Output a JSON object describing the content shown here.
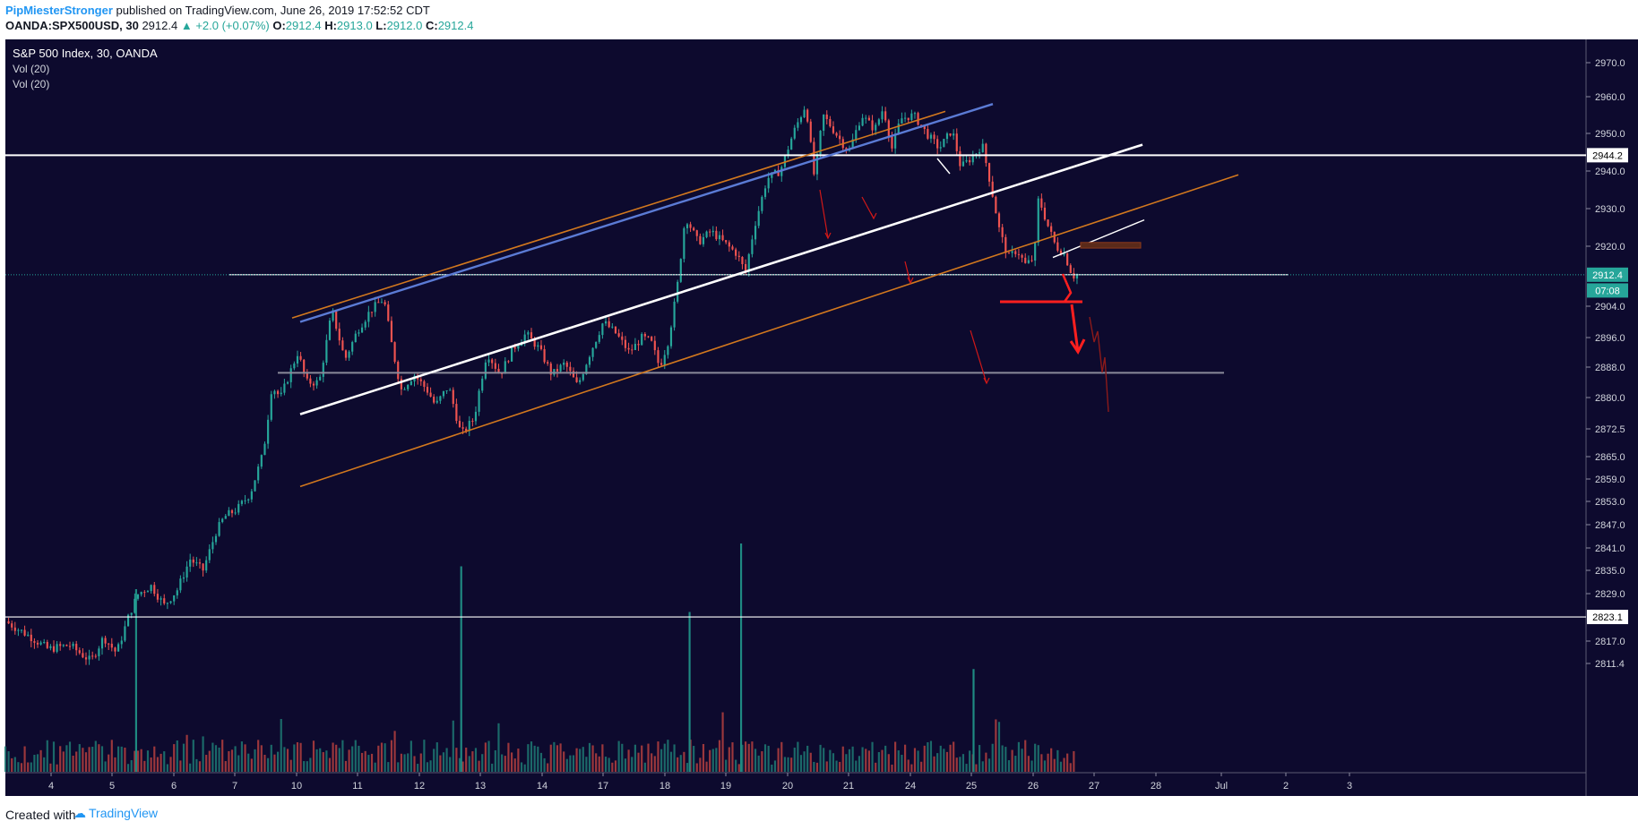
{
  "header": {
    "author": "PipMiesterStronger",
    "published_text": "published on TradingView.com, June 26, 2019 17:52:52 CDT",
    "symbol": "OANDA:SPX500USD, 30",
    "last": "2912.4",
    "change": "▲ +2.0 (+0.07%)",
    "o_label": "O:",
    "o_value": "2912.4",
    "h_label": "H:",
    "h_value": "2913.0",
    "l_label": "L:",
    "l_value": "2912.0",
    "c_label": "C:",
    "c_value": "2912.4"
  },
  "legend": {
    "title": "S&P 500 Index, 30, OANDA",
    "vol1": "Vol (20)",
    "vol2": "Vol (20)"
  },
  "footer": {
    "created_with": "Created with",
    "brand": "TradingView"
  },
  "colors": {
    "background": "#0d0a2e",
    "up": "#26a69a",
    "down": "#ef5350",
    "orange": "#d2781e",
    "blue": "#5b7bd5",
    "white": "#ffffff",
    "grey": "#8a8a9a",
    "red": "#ff1f1f"
  },
  "chart_data": {
    "type": "candlestick",
    "timeframe": "30",
    "y_ticks": [
      "2970.0",
      "2960.0",
      "2950.0",
      "2940.0",
      "2930.0",
      "2920.0",
      "2904.0",
      "2896.0",
      "2888.0",
      "2880.0",
      "2872.5",
      "2865.0",
      "2859.0",
      "2853.0",
      "2847.0",
      "2841.0",
      "2835.0",
      "2829.0",
      "2817.0",
      "2811.4"
    ],
    "y_tick_values": [
      2970,
      2960,
      2950,
      2940,
      2930,
      2920,
      2904,
      2896,
      2888,
      2880,
      2872.5,
      2865,
      2859,
      2853,
      2847,
      2841,
      2835,
      2829,
      2817,
      2811.4
    ],
    "x_ticks": [
      "4",
      "5",
      "6",
      "7",
      "10",
      "11",
      "12",
      "13",
      "14",
      "17",
      "18",
      "19",
      "20",
      "21",
      "24",
      "25",
      "26",
      "27",
      "28",
      "Jul",
      "2",
      "3"
    ],
    "price_labels": [
      {
        "text": "2944.2",
        "value": 2944.2,
        "style": "white"
      },
      {
        "text": "2912.4",
        "value": 2912.4,
        "style": "teal"
      },
      {
        "text": "07:08",
        "value": 2908.2,
        "style": "teal"
      },
      {
        "text": "2823.1",
        "value": 2823.1,
        "style": "white"
      }
    ],
    "horizontal_lines": [
      {
        "value": 2944.2,
        "style": "white",
        "from_day": 3.0,
        "to_day": 3.3
      },
      {
        "value": 2912.4,
        "style": "white-thin",
        "from_day": 7.0,
        "to_day": 2.0
      },
      {
        "value": 2886.5,
        "style": "grey",
        "from_day": 9.7,
        "to_day": 1.0
      },
      {
        "value": 2823.1,
        "style": "white-thin",
        "from_day": 3.0,
        "to_day": 3.3
      }
    ],
    "trend_lines": [
      {
        "style": "orange",
        "from": {
          "x": "10",
          "y": 2901
        },
        "to": {
          "x": "24",
          "y": 2956
        }
      },
      {
        "style": "blue",
        "from": {
          "x": "10",
          "y": 2900
        },
        "to": {
          "x": "25",
          "y": 2958
        }
      },
      {
        "style": "white",
        "from": {
          "x": "10",
          "y": 2876
        },
        "to": {
          "x": "27",
          "y": 2947
        }
      },
      {
        "style": "orange",
        "from": {
          "x": "10",
          "y": 2857
        },
        "to": {
          "x": "28",
          "y": 2939
        }
      },
      {
        "style": "white-thin",
        "from": {
          "x": "26",
          "y": 2917
        },
        "to": {
          "x": "27",
          "y": 2927
        }
      }
    ],
    "rectangle": {
      "y_top": 2921,
      "y_bottom": 2919.5,
      "color": "#5a2a1a"
    },
    "price_path": [
      [
        3.0,
        2822
      ],
      [
        3.6,
        2818
      ],
      [
        4.0,
        2815
      ],
      [
        4.5,
        2816
      ],
      [
        5.0,
        2812
      ],
      [
        5.3,
        2818
      ],
      [
        5.6,
        2814
      ],
      [
        5.9,
        2824
      ],
      [
        6.1,
        2829
      ],
      [
        6.4,
        2831
      ],
      [
        6.7,
        2826
      ],
      [
        7.0,
        2830
      ],
      [
        7.3,
        2838
      ],
      [
        7.6,
        2835
      ],
      [
        7.9,
        2845
      ],
      [
        8.1,
        2849
      ],
      [
        8.4,
        2851
      ],
      [
        8.7,
        2855
      ],
      [
        9.0,
        2866
      ],
      [
        9.2,
        2883
      ],
      [
        9.4,
        2880
      ],
      [
        9.6,
        2886
      ],
      [
        9.8,
        2892
      ],
      [
        10.0,
        2884
      ],
      [
        10.3,
        2884
      ],
      [
        10.6,
        2903
      ],
      [
        10.9,
        2890
      ],
      [
        11.2,
        2898
      ],
      [
        11.5,
        2903
      ],
      [
        11.8,
        2906
      ],
      [
        12.0,
        2893
      ],
      [
        12.2,
        2882
      ],
      [
        12.5,
        2886
      ],
      [
        12.8,
        2882
      ],
      [
        13.0,
        2878
      ],
      [
        13.3,
        2883
      ],
      [
        13.6,
        2871
      ],
      [
        13.9,
        2875
      ],
      [
        14.2,
        2892
      ],
      [
        14.5,
        2886
      ],
      [
        14.8,
        2893
      ],
      [
        15.1,
        2897
      ],
      [
        15.4,
        2893
      ],
      [
        15.7,
        2886
      ],
      [
        16.0,
        2889
      ],
      [
        16.3,
        2883
      ],
      [
        16.6,
        2892
      ],
      [
        16.9,
        2900
      ],
      [
        17.2,
        2897
      ],
      [
        17.5,
        2892
      ],
      [
        17.8,
        2896
      ],
      [
        18.0,
        2895
      ],
      [
        18.2,
        2888
      ],
      [
        18.4,
        2895
      ],
      [
        18.6,
        2908
      ],
      [
        18.8,
        2928
      ],
      [
        19.1,
        2921
      ],
      [
        19.4,
        2924
      ],
      [
        19.7,
        2921
      ],
      [
        20.0,
        2918
      ],
      [
        20.2,
        2913
      ],
      [
        20.4,
        2925
      ],
      [
        20.7,
        2938
      ],
      [
        21.0,
        2940
      ],
      [
        21.3,
        2950
      ],
      [
        21.6,
        2958
      ],
      [
        21.8,
        2938
      ],
      [
        22.0,
        2955
      ],
      [
        22.3,
        2950
      ],
      [
        22.6,
        2945
      ],
      [
        22.9,
        2955
      ],
      [
        23.2,
        2951
      ],
      [
        23.4,
        2957
      ],
      [
        23.6,
        2946
      ],
      [
        23.8,
        2954
      ],
      [
        24.1,
        2955
      ],
      [
        24.4,
        2950
      ],
      [
        24.7,
        2946
      ],
      [
        25.0,
        2951
      ],
      [
        25.2,
        2941
      ],
      [
        25.5,
        2944
      ],
      [
        25.7,
        2947
      ],
      [
        25.9,
        2936
      ],
      [
        26.1,
        2924
      ],
      [
        26.3,
        2917
      ],
      [
        26.5,
        2919
      ],
      [
        26.7,
        2915
      ],
      [
        26.9,
        2917
      ],
      [
        27.0,
        2933
      ],
      [
        27.2,
        2926
      ],
      [
        27.4,
        2920
      ],
      [
        27.6,
        2918
      ],
      [
        27.8,
        2912
      ],
      [
        27.9,
        2912.4
      ]
    ],
    "volume_spikes": [
      {
        "day": 6.05,
        "height": 0.8
      },
      {
        "day": 13.6,
        "height": 0.9
      },
      {
        "day": 18.9,
        "height": 0.7
      },
      {
        "day": 20.1,
        "height": 1.0
      },
      {
        "day": 25.5,
        "height": 0.45
      }
    ]
  }
}
